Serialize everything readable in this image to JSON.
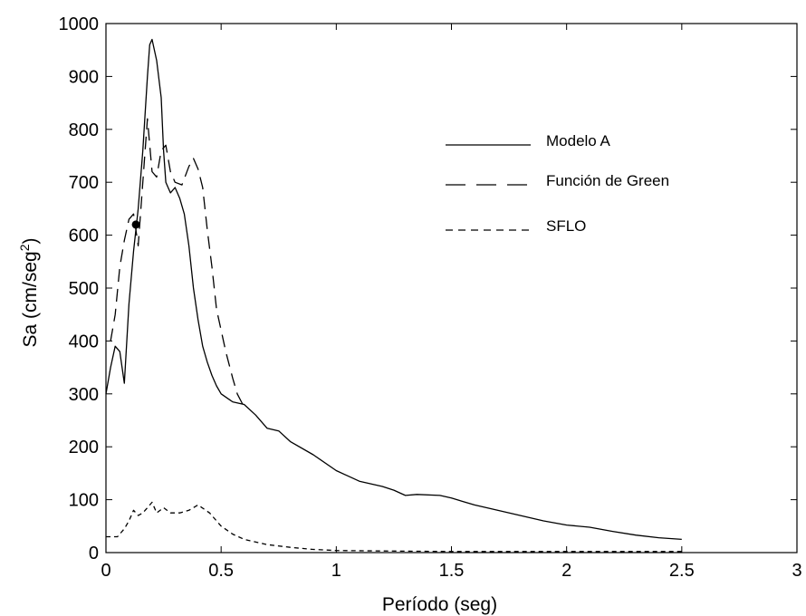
{
  "chart_data": {
    "type": "line",
    "xlabel": "Período (seg)",
    "ylabel": "Sa (cm/seg",
    "ylabel_superscript": "2",
    "ylabel_suffix": ")",
    "xlim": [
      0,
      3
    ],
    "ylim": [
      0,
      1000
    ],
    "x_ticks": [
      0,
      0.5,
      1,
      1.5,
      2,
      2.5,
      3
    ],
    "x_tick_labels": [
      "0",
      "0.5",
      "1",
      "1.5",
      "2",
      "2.5",
      "3"
    ],
    "y_ticks": [
      0,
      100,
      200,
      300,
      400,
      500,
      600,
      700,
      800,
      900,
      1000
    ],
    "y_tick_labels": [
      "0",
      "100",
      "200",
      "300",
      "400",
      "500",
      "600",
      "700",
      "800",
      "900",
      "1000"
    ],
    "grid": false,
    "legend_position": "upper-right",
    "series": [
      {
        "name": "Modelo A",
        "style": "solid",
        "points": [
          [
            0,
            300
          ],
          [
            0.02,
            350
          ],
          [
            0.04,
            390
          ],
          [
            0.06,
            380
          ],
          [
            0.08,
            320
          ],
          [
            0.1,
            470
          ],
          [
            0.12,
            570
          ],
          [
            0.14,
            650
          ],
          [
            0.16,
            760
          ],
          [
            0.18,
            900
          ],
          [
            0.19,
            960
          ],
          [
            0.2,
            970
          ],
          [
            0.22,
            930
          ],
          [
            0.24,
            860
          ],
          [
            0.25,
            760
          ],
          [
            0.26,
            700
          ],
          [
            0.28,
            680
          ],
          [
            0.3,
            690
          ],
          [
            0.32,
            670
          ],
          [
            0.34,
            640
          ],
          [
            0.36,
            580
          ],
          [
            0.38,
            500
          ],
          [
            0.4,
            440
          ],
          [
            0.42,
            390
          ],
          [
            0.44,
            360
          ],
          [
            0.46,
            335
          ],
          [
            0.48,
            315
          ],
          [
            0.5,
            300
          ],
          [
            0.55,
            285
          ],
          [
            0.6,
            280
          ],
          [
            0.65,
            260
          ],
          [
            0.7,
            235
          ],
          [
            0.75,
            230
          ],
          [
            0.8,
            210
          ],
          [
            0.9,
            185
          ],
          [
            1.0,
            155
          ],
          [
            1.1,
            135
          ],
          [
            1.2,
            125
          ],
          [
            1.25,
            118
          ],
          [
            1.3,
            108
          ],
          [
            1.35,
            110
          ],
          [
            1.45,
            108
          ],
          [
            1.5,
            103
          ],
          [
            1.6,
            90
          ],
          [
            1.7,
            80
          ],
          [
            1.8,
            70
          ],
          [
            1.9,
            60
          ],
          [
            2.0,
            52
          ],
          [
            2.1,
            48
          ],
          [
            2.2,
            40
          ],
          [
            2.3,
            33
          ],
          [
            2.4,
            28
          ],
          [
            2.5,
            25
          ]
        ]
      },
      {
        "name": "Función de Green",
        "style": "dashed",
        "points": [
          [
            0.02,
            400
          ],
          [
            0.04,
            450
          ],
          [
            0.06,
            540
          ],
          [
            0.08,
            590
          ],
          [
            0.1,
            630
          ],
          [
            0.12,
            640
          ],
          [
            0.14,
            580
          ],
          [
            0.16,
            700
          ],
          [
            0.18,
            820
          ],
          [
            0.2,
            720
          ],
          [
            0.22,
            710
          ],
          [
            0.24,
            760
          ],
          [
            0.26,
            770
          ],
          [
            0.28,
            720
          ],
          [
            0.3,
            700
          ],
          [
            0.33,
            695
          ],
          [
            0.36,
            730
          ],
          [
            0.38,
            745
          ],
          [
            0.4,
            725
          ],
          [
            0.42,
            690
          ],
          [
            0.44,
            610
          ],
          [
            0.46,
            540
          ],
          [
            0.48,
            460
          ],
          [
            0.5,
            420
          ],
          [
            0.52,
            380
          ],
          [
            0.55,
            330
          ],
          [
            0.57,
            300
          ],
          [
            0.6,
            275
          ]
        ]
      },
      {
        "name": "SFLO",
        "style": "short-dashed",
        "points": [
          [
            0,
            30
          ],
          [
            0.05,
            30
          ],
          [
            0.08,
            45
          ],
          [
            0.1,
            60
          ],
          [
            0.12,
            80
          ],
          [
            0.14,
            70
          ],
          [
            0.16,
            75
          ],
          [
            0.18,
            85
          ],
          [
            0.2,
            95
          ],
          [
            0.22,
            75
          ],
          [
            0.25,
            85
          ],
          [
            0.28,
            75
          ],
          [
            0.32,
            75
          ],
          [
            0.36,
            80
          ],
          [
            0.4,
            90
          ],
          [
            0.45,
            75
          ],
          [
            0.5,
            50
          ],
          [
            0.55,
            35
          ],
          [
            0.6,
            25
          ],
          [
            0.7,
            15
          ],
          [
            0.8,
            10
          ],
          [
            0.9,
            6
          ],
          [
            1.0,
            4
          ],
          [
            1.2,
            3
          ],
          [
            1.5,
            2
          ],
          [
            2.0,
            2
          ],
          [
            2.5,
            2
          ]
        ]
      }
    ],
    "annotations": [
      {
        "type": "point-marker",
        "x": 0.13,
        "y": 620
      }
    ]
  }
}
